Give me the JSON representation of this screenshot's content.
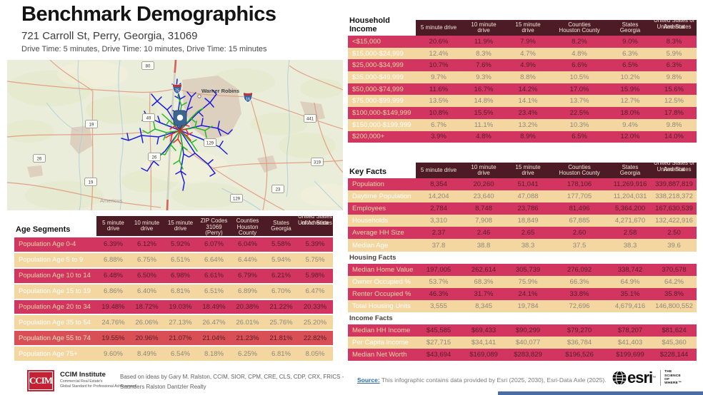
{
  "header": {
    "title": "Benchmark Demographics",
    "address": "721 Carroll St, Perry, Georgia, 31069",
    "drive_times": "Drive Time: 5 minutes, Drive Time: 10 minutes, Drive Time: 15 minutes"
  },
  "colors": {
    "header_bg": "#4c1b25",
    "row_crimson": "#d23560",
    "row_highlight": "#d94f56",
    "row_tan": "#f3d6a0",
    "drive_5min": "#e03122",
    "drive_10min": "#25b825",
    "drive_15min": "#1c1cdc"
  },
  "map": {
    "city1": "Warner Robins",
    "city2": "Americus",
    "interstates": [
      "75",
      "16"
    ],
    "route_shields": [
      "80",
      "49",
      "19",
      "441",
      "129",
      "26",
      "26",
      "319",
      "19",
      "23",
      "129"
    ]
  },
  "income_table": {
    "first_header": "Household Income",
    "columns": [
      {
        "lines": [
          "5 minute drive"
        ]
      },
      {
        "lines": [
          "10 minute",
          "drive"
        ]
      },
      {
        "lines": [
          "15 minute",
          "drive"
        ]
      },
      {
        "lines": [
          "Counties",
          "Houston County"
        ]
      },
      {
        "lines": [
          "States",
          "Georgia"
        ]
      },
      {
        "lines": [
          "United States of",
          "America",
          "United States"
        ],
        "overlap": true
      }
    ],
    "sections": [
      {
        "title": null,
        "rows": [
          {
            "label": "<$15,000",
            "values": [
              "20.6%",
              "11.9%",
              "7.9%",
              "8.2%",
              "9.0%",
              "8.3%"
            ]
          },
          {
            "label": "$15,000-$24,999",
            "values": [
              "12.4%",
              "8.3%",
              "4.7%",
              "4.8%",
              "6.3%",
              "5.9%"
            ]
          },
          {
            "label": "$25,000-$34,999",
            "values": [
              "10.7%",
              "7.6%",
              "4.9%",
              "6.6%",
              "6.5%",
              "6.3%"
            ]
          },
          {
            "label": "$35,000-$49,999",
            "values": [
              "9.7%",
              "9.3%",
              "8.8%",
              "10.5%",
              "10.2%",
              "9.8%"
            ]
          },
          {
            "label": "$50,000-$74,999",
            "values": [
              "11.6%",
              "16.7%",
              "14.2%",
              "17.0%",
              "15.9%",
              "15.6%"
            ]
          },
          {
            "label": "$75,000-$99,999",
            "values": [
              "13.5%",
              "14.8%",
              "14.1%",
              "13.7%",
              "12.7%",
              "12.5%"
            ]
          },
          {
            "label": "$100,000-$149,999",
            "values": [
              "10.8%",
              "15.5%",
              "23.4%",
              "22.5%",
              "18.0%",
              "17.8%"
            ]
          },
          {
            "label": "$150,000-$199,999",
            "values": [
              "6.7%",
              "11.1%",
              "13.2%",
              "10.3%",
              "9.4%",
              "9.8%"
            ]
          },
          {
            "label": "$200,000+",
            "values": [
              "3.9%",
              "4.8%",
              "8.9%",
              "6.5%",
              "12.0%",
              "14.0%"
            ]
          }
        ]
      }
    ]
  },
  "key_facts_table": {
    "first_header": "Key Facts",
    "columns": [
      {
        "lines": [
          "5 minute drive"
        ]
      },
      {
        "lines": [
          "10 minute",
          "drive"
        ]
      },
      {
        "lines": [
          "15 minute",
          "drive"
        ]
      },
      {
        "lines": [
          "Counties",
          "Houston County"
        ]
      },
      {
        "lines": [
          "States",
          "Georgia"
        ]
      },
      {
        "lines": [
          "United States of",
          "America",
          "United States"
        ],
        "overlap": true
      }
    ],
    "sections": [
      {
        "title": null,
        "rows": [
          {
            "label": "Population",
            "values": [
              "8,354",
              "20,260",
              "51,041",
              "178,106",
              "11,269,916",
              "339,887,819"
            ]
          },
          {
            "label": "Daytime Population",
            "values": [
              "14,204",
              "23,640",
              "47,088",
              "177,705",
              "11,204,031",
              "338,218,372"
            ]
          },
          {
            "label": "Employees",
            "values": [
              "2,784",
              "8,748",
              "23,786",
              "81,496",
              "5,364,200",
              "167,630,539"
            ]
          },
          {
            "label": "Households",
            "values": [
              "3,310",
              "7,908",
              "18,849",
              "67,885",
              "4,271,670",
              "132,422,916"
            ]
          },
          {
            "label": "Average HH Size",
            "values": [
              "2.37",
              "2.46",
              "2.65",
              "2.60",
              "2.58",
              "2.50"
            ]
          },
          {
            "label": "Median Age",
            "values": [
              "37.8",
              "38.8",
              "38.3",
              "37.5",
              "38.3",
              "39.6"
            ]
          }
        ]
      },
      {
        "title": "Housing Facts",
        "rows": [
          {
            "label": "Median Home Value",
            "values": [
              "197,005",
              "262,614",
              "305,739",
              "276,092",
              "338,742",
              "370,578"
            ]
          },
          {
            "label": "Owner Occupied %",
            "values": [
              "53.7%",
              "68.3%",
              "75.9%",
              "66.3%",
              "64.9%",
              "64.2%"
            ]
          },
          {
            "label": "Renter Occupied %",
            "values": [
              "46.3%",
              "31.7%",
              "24.1%",
              "33.8%",
              "35.1%",
              "35.8%"
            ]
          },
          {
            "label": "Total Housing Units",
            "values": [
              "3,555",
              "8,345",
              "19,784",
              "72,696",
              "4,679,416",
              "146,800,552"
            ]
          }
        ]
      },
      {
        "title": "Income Facts",
        "rows": [
          {
            "label": "Median HH Income",
            "values": [
              "$45,585",
              "$69,433",
              "$90,299",
              "$79,270",
              "$78,207",
              "$81,624"
            ]
          },
          {
            "label": "Per Capita Income",
            "values": [
              "$27,715",
              "$34,141",
              "$40,077",
              "$36,784",
              "$41,403",
              "$45,360"
            ]
          },
          {
            "label": "Median Net Worth",
            "values": [
              "$43,694",
              "$169,089",
              "$283,829",
              "$196,526",
              "$199,699",
              "$228,144"
            ]
          }
        ]
      }
    ]
  },
  "age_table": {
    "first_header": "Age Segments",
    "columns": [
      {
        "lines": [
          "5 minute",
          "drive"
        ]
      },
      {
        "lines": [
          "10 minute",
          "drive"
        ]
      },
      {
        "lines": [
          "15 minute",
          "drive"
        ]
      },
      {
        "lines": [
          "ZIP Codes",
          "31069",
          "(Perry)"
        ],
        "clip": true
      },
      {
        "lines": [
          "Counties",
          "Houston",
          "County"
        ],
        "clip": true
      },
      {
        "lines": [
          "States",
          "Georgia"
        ]
      },
      {
        "lines": [
          "United States",
          "of America",
          "United States"
        ],
        "overlap": true
      }
    ],
    "sections": [
      {
        "title": null,
        "rows": [
          {
            "label": "Population Age 0-4",
            "values": [
              "6.39%",
              "6.12%",
              "5.92%",
              "6.07%",
              "6.04%",
              "5.58%",
              "5.39%"
            ]
          },
          {
            "label": "Population Age 5 to 9",
            "values": [
              "6.88%",
              "6.75%",
              "6.51%",
              "6.64%",
              "6.44%",
              "5.94%",
              "5.75%"
            ]
          },
          {
            "label": "Population Age 10 to 14",
            "values": [
              "6.48%",
              "6.50%",
              "6.98%",
              "6.61%",
              "6.79%",
              "6.21%",
              "5.98%"
            ]
          },
          {
            "label": "Population Age 15 to 19",
            "values": [
              "6.86%",
              "6.40%",
              "6.81%",
              "6.51%",
              "6.89%",
              "6.70%",
              "6.47%"
            ]
          },
          {
            "label": "Population Age 20 to 34",
            "values": [
              "19.48%",
              "18.72%",
              "19.03%",
              "18.49%",
              "20.38%",
              "21.22%",
              "20.33%"
            ]
          },
          {
            "label": "Population Age 35 to 54",
            "values": [
              "24.76%",
              "26.06%",
              "27.13%",
              "26.47%",
              "26.01%",
              "25.76%",
              "25.20%"
            ]
          },
          {
            "label": "Population Age 55 to 74",
            "hl": true,
            "values": [
              "19.55%",
              "20.96%",
              "21.07%",
              "21.04%",
              "21.23%",
              "21.81%",
              "22.82%"
            ]
          },
          {
            "label": "Population Age 75+",
            "values": [
              "9.60%",
              "8.49%",
              "6.54%",
              "8.18%",
              "6.25%",
              "6.81%",
              "8.05%"
            ]
          }
        ]
      }
    ]
  },
  "footer": {
    "ccim_logo_text": "CCIM",
    "ccim_name": "CCIM Institute",
    "ccim_sub1": "Commercial Real Estate's",
    "ccim_sub2": "Global Standard for Professional Achievement",
    "credit_line1": "Based on ideas by Gary M. Ralston, CCIM, SIOR, CPM, CRE, CLS, CDP, CRX, FRICS -",
    "credit_line2": "Saunders Ralston Dantzler Realty",
    "source_label": "Source:",
    "source_text": " This infographic contains data provided by Esri (2025, 2030), Esri-Data Axle (2025).",
    "esri_wordmark": "esri",
    "esri_tm": "™",
    "esri_tagline": [
      "THE",
      "SCIENCE",
      "OF",
      "WHERE™"
    ]
  }
}
